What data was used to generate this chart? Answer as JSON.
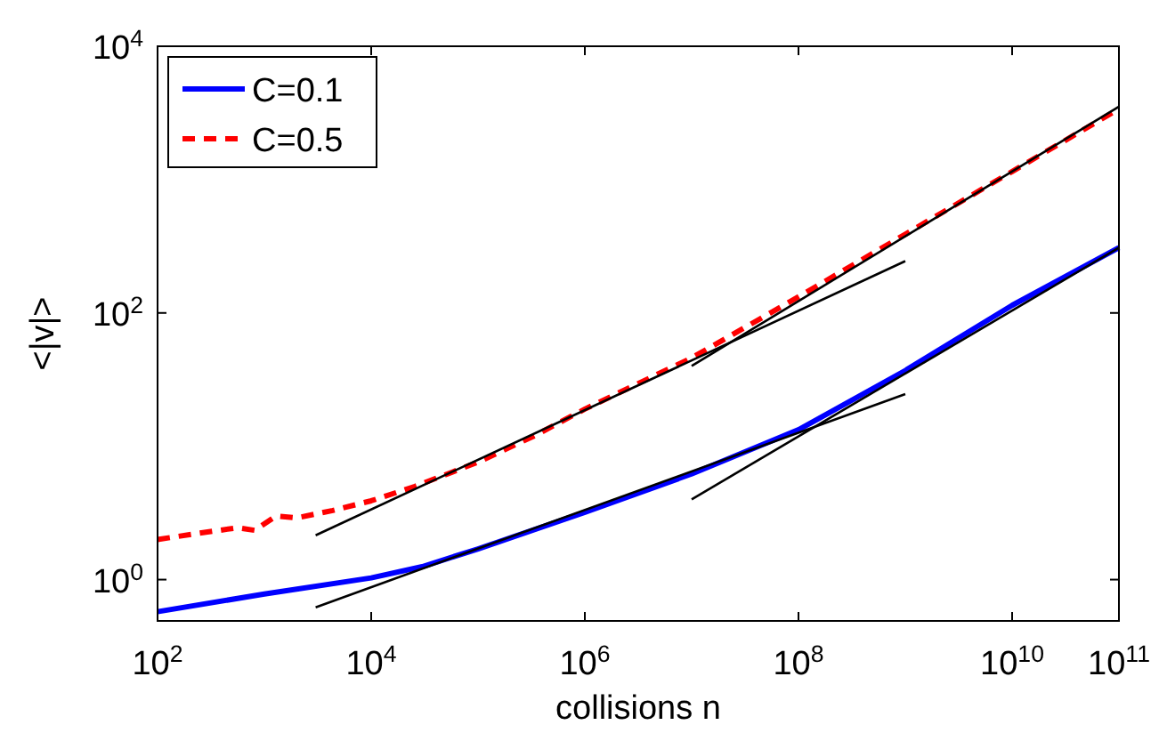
{
  "chart_data": {
    "type": "line",
    "xlabel": "collisions n",
    "ylabel": "<|v|>",
    "log": "xy",
    "xlim": [
      100,
      100000000000
    ],
    "ylim": [
      0.49,
      10000
    ],
    "xticks": [
      {
        "value": 100,
        "label": "10$^{2}$"
      },
      {
        "value": 10000,
        "label": "10$^{4}$"
      },
      {
        "value": 1000000,
        "label": "10$^{6}$"
      },
      {
        "value": 100000000,
        "label": "10$^{8}$"
      },
      {
        "value": 10000000000,
        "label": "10$^{10}$"
      },
      {
        "value": 100000000000,
        "label": "10$^{11}$"
      }
    ],
    "yticks": [
      {
        "value": 1,
        "label": "10$^{0}$"
      },
      {
        "value": 100,
        "label": "10$^{2}$"
      },
      {
        "value": 10000,
        "label": "10$^{4}$"
      }
    ],
    "grid": false,
    "legend": "top left",
    "series": [
      {
        "name": "C=0.1",
        "color": "#0000ff",
        "line_style": "solid",
        "x": [
          100,
          1000,
          10000,
          30000,
          100000,
          1000000,
          10000000,
          100000000,
          1000000000,
          10000000000,
          100000000000
        ],
        "values": [
          0.575,
          0.78,
          1.03,
          1.25,
          1.7,
          3.2,
          6.2,
          13.3,
          37,
          114,
          309
        ]
      },
      {
        "name": "C=0.5",
        "color": "#ff0000",
        "line_style": "dashed",
        "x": [
          100,
          257,
          562,
          813,
          1288,
          1995,
          4365,
          10000,
          25700,
          100000,
          338844,
          1000000,
          10000000,
          100000000,
          1000000000,
          10000000000,
          100000000000
        ],
        "values": [
          2.0,
          2.24,
          2.45,
          2.34,
          3.0,
          2.9,
          3.3,
          3.9,
          5.0,
          7.6,
          12,
          19,
          46,
          132,
          389,
          1150,
          3390
        ]
      },
      {
        "color": "#000000",
        "line_style": "solid",
        "x": [
          3020,
          1000000000
        ],
        "values": [
          2.15,
          245
        ]
      },
      {
        "color": "#000000",
        "line_style": "solid",
        "x": [
          10000000,
          100000000000
        ],
        "values": [
          40,
          3530
        ]
      },
      {
        "color": "#000000",
        "line_style": "solid",
        "x": [
          3020,
          1000000000
        ],
        "values": [
          0.62,
          24.6
        ]
      },
      {
        "color": "#000000",
        "line_style": "solid",
        "x": [
          10000000,
          100000000000
        ],
        "values": [
          4.0,
          309
        ]
      }
    ]
  }
}
